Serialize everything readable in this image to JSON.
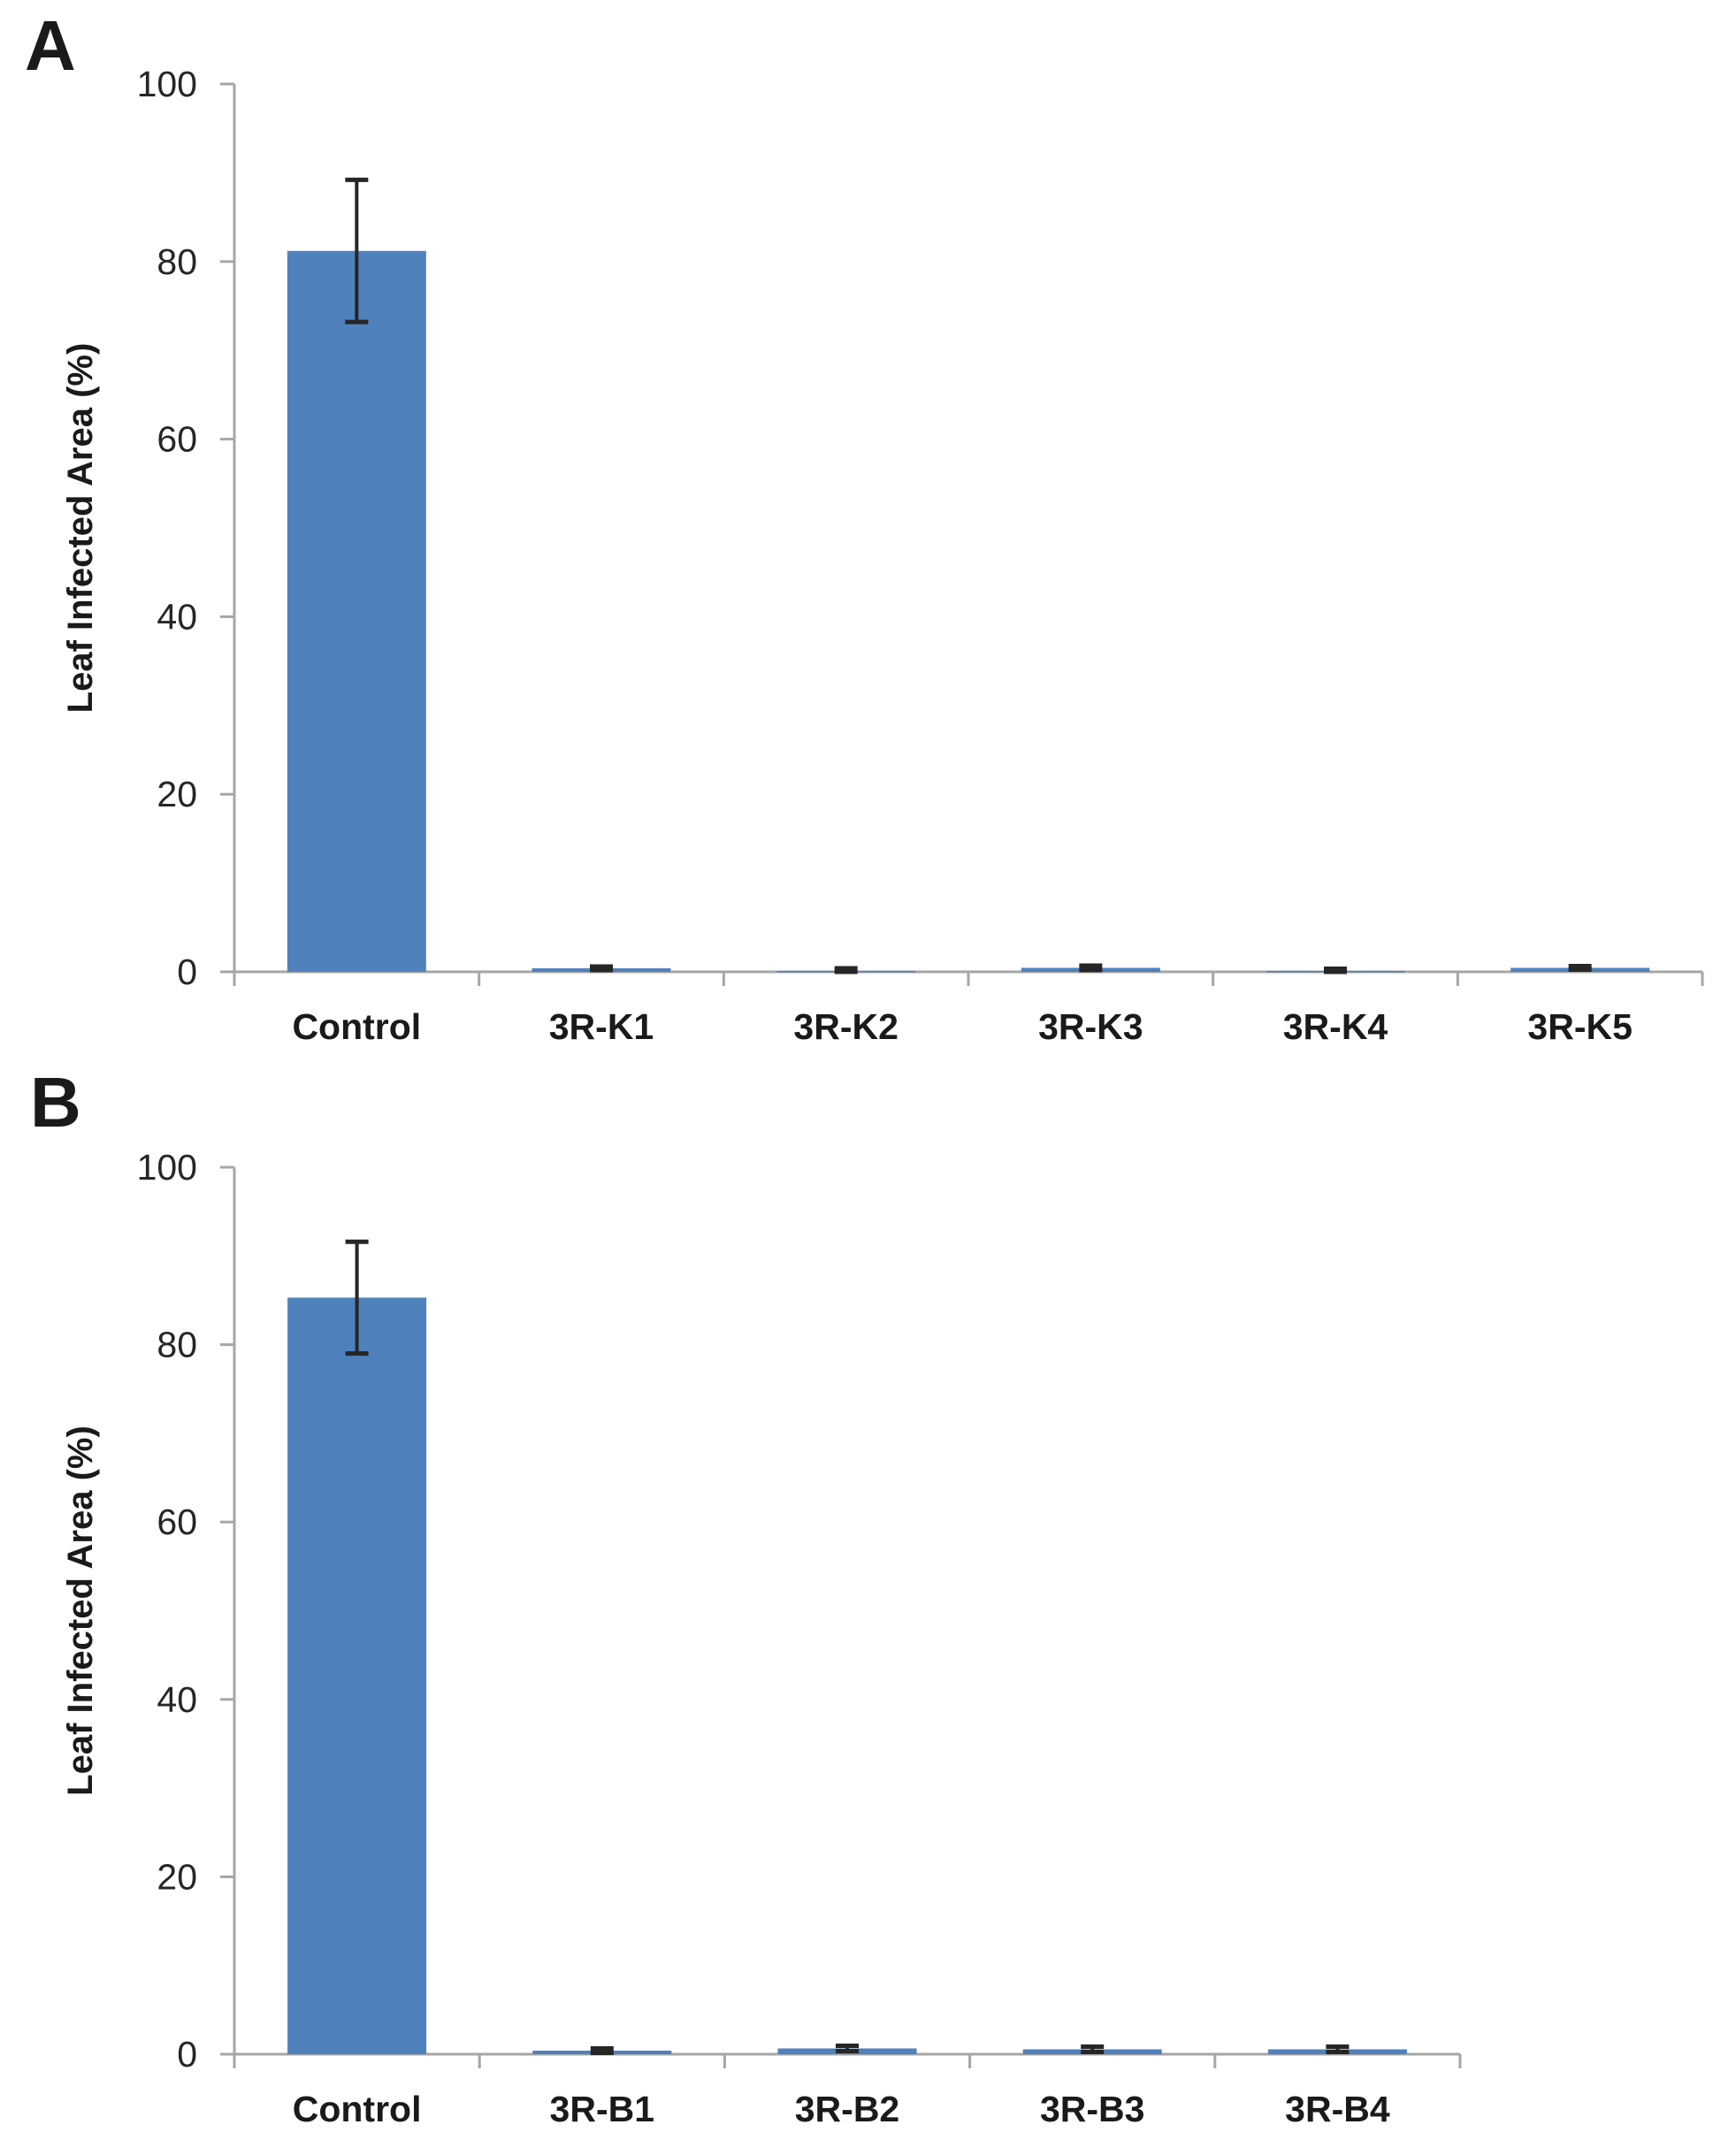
{
  "figure": {
    "background": "#ffffff"
  },
  "colors": {
    "bar_fill": "#4F81BD",
    "error_bar": "#262626",
    "axis_line": "#A6A6A6",
    "text": "#1a1a1a"
  },
  "chart_data": [
    {
      "type": "bar",
      "panel_label": "A",
      "title": "",
      "xlabel": "",
      "ylabel": "Leaf Infected Area (%)",
      "ylim": [
        0,
        100
      ],
      "yticks": [
        0,
        20,
        40,
        60,
        80,
        100
      ],
      "grid": false,
      "legend": null,
      "categories": [
        "Control",
        "3R-K1",
        "3R-K2",
        "3R-K3",
        "3R-K4",
        "3R-K5"
      ],
      "values": [
        81.2,
        0.4,
        0.1,
        0.45,
        0.1,
        0.45
      ],
      "errors": [
        8.0,
        0.2,
        0.3,
        0.25,
        0.25,
        0.2
      ]
    },
    {
      "type": "bar",
      "panel_label": "B",
      "title": "",
      "xlabel": "",
      "ylabel": "Leaf Infected Area (%)",
      "ylim": [
        0,
        100
      ],
      "yticks": [
        0,
        20,
        40,
        60,
        80,
        100
      ],
      "grid": false,
      "legend": null,
      "categories": [
        "Control",
        "3R-B1",
        "3R-B2",
        "3R-B3",
        "3R-B4"
      ],
      "values": [
        85.3,
        0.4,
        0.65,
        0.55,
        0.55
      ],
      "errors": [
        6.3,
        0.25,
        0.3,
        0.3,
        0.3
      ]
    }
  ]
}
